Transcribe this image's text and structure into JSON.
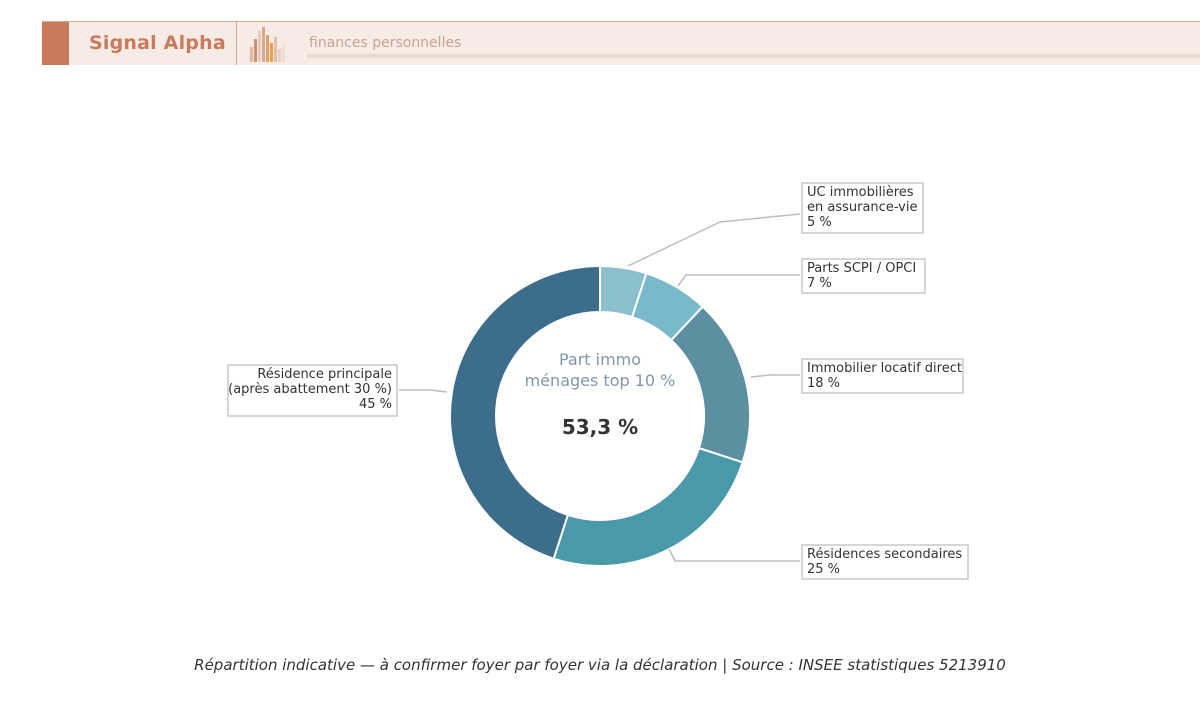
{
  "header": {
    "brand": "Signal Alpha",
    "tagline": "finances personnelles",
    "accent_color": "#c97a5c",
    "logo_icon": "bar-chart-icon"
  },
  "chart_data": {
    "type": "pie",
    "variant": "donut",
    "center_label_line1": "Part immo",
    "center_label_line2": "ménages top 10 %",
    "center_value": "53,3 %",
    "slices": [
      {
        "lines": [
          "UC immobilières",
          "en assurance-vie",
          "5 %"
        ],
        "value": 5,
        "color": "#8bbfcc"
      },
      {
        "lines": [
          "Parts SCPI / OPCI",
          "7 %"
        ],
        "value": 7,
        "color": "#7ab8cc"
      },
      {
        "lines": [
          "Immobilier locatif direct",
          "18 %"
        ],
        "value": 18,
        "color": "#5c8fa2"
      },
      {
        "lines": [
          "Résidences secondaires",
          "25 %"
        ],
        "value": 25,
        "color": "#4a99aa"
      },
      {
        "lines": [
          "Résidence principale",
          "(après abattement 30 %)",
          "45 %"
        ],
        "value": 45,
        "color": "#3c6e8c"
      }
    ]
  },
  "caption": "Répartition indicative — à confirmer foyer par foyer via la déclaration  |  Source : INSEE statistiques 5213910"
}
